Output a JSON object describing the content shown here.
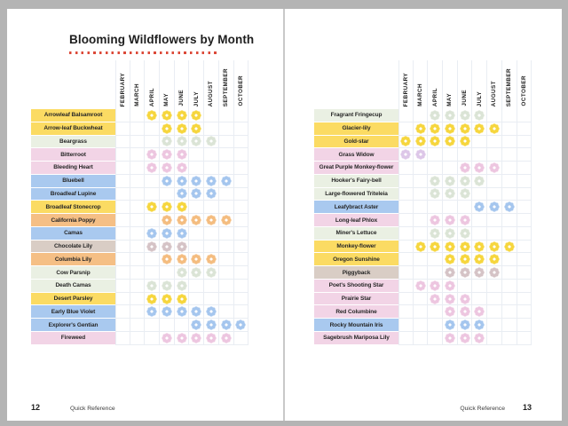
{
  "title": "Blooming Wildflowers by Month",
  "footer": {
    "section_label": "Quick Reference",
    "left_page_number": "12",
    "right_page_number": "13"
  },
  "colors": {
    "surround_background": "#b4b4b4",
    "page_background": "#ffffff",
    "accent_rule": "#dc4a39",
    "grid_line": "#e9edf3",
    "palette": {
      "yellow": {
        "label": "#fbdb63",
        "flower": "#f6d63e"
      },
      "green": {
        "label": "#eaf0e3",
        "flower": "#dbe4d6"
      },
      "pink": {
        "label": "#f2d4e6",
        "flower": "#edc6e0"
      },
      "blue": {
        "label": "#a9c9ef",
        "flower": "#a5c6ee"
      },
      "orange": {
        "label": "#f5bf85",
        "flower": "#f4bd80"
      },
      "tan": {
        "label": "#d9cdc5",
        "flower": "#d5c3c6"
      },
      "purple": {
        "label": "#f2d4e6",
        "flower": "#ddc7e8"
      }
    }
  },
  "chart_data": {
    "type": "heatmap",
    "title": "Blooming Wildflowers by Month",
    "x_categories": [
      "FEBRUARY",
      "MARCH",
      "APRIL",
      "MAY",
      "JUNE",
      "JULY",
      "AUGUST",
      "SEPTEMBER",
      "OCTOBER"
    ],
    "legend_position": "none",
    "grid": true,
    "pages": [
      {
        "page_number": "12",
        "rows": [
          {
            "name": "Arrowleaf Balsamroot",
            "palette": "yellow",
            "blooms": [
              "APRIL",
              "MAY",
              "JUNE",
              "JULY"
            ]
          },
          {
            "name": "Arrow-leaf Buckwheat",
            "palette": "yellow",
            "blooms": [
              "MAY",
              "JUNE",
              "JULY"
            ]
          },
          {
            "name": "Beargrass",
            "palette": "green",
            "blooms": [
              "MAY",
              "JUNE",
              "JULY",
              "AUGUST"
            ]
          },
          {
            "name": "Bitterroot",
            "palette": "pink",
            "blooms": [
              "APRIL",
              "MAY",
              "JUNE"
            ]
          },
          {
            "name": "Bleeding Heart",
            "palette": "pink",
            "blooms": [
              "APRIL",
              "MAY",
              "JUNE"
            ]
          },
          {
            "name": "Bluebell",
            "palette": "blue",
            "blooms": [
              "MAY",
              "JUNE",
              "JULY",
              "AUGUST",
              "SEPTEMBER"
            ]
          },
          {
            "name": "Broadleaf Lupine",
            "palette": "blue",
            "blooms": [
              "JUNE",
              "JULY",
              "AUGUST"
            ]
          },
          {
            "name": "Broadleaf Stonecrop",
            "palette": "yellow",
            "blooms": [
              "APRIL",
              "MAY",
              "JUNE"
            ]
          },
          {
            "name": "California Poppy",
            "palette": "orange",
            "blooms": [
              "MAY",
              "JUNE",
              "JULY",
              "AUGUST",
              "SEPTEMBER"
            ]
          },
          {
            "name": "Camas",
            "palette": "blue",
            "blooms": [
              "APRIL",
              "MAY",
              "JUNE"
            ]
          },
          {
            "name": "Chocolate Lily",
            "palette": "tan",
            "blooms": [
              "APRIL",
              "MAY",
              "JUNE"
            ]
          },
          {
            "name": "Columbia Lily",
            "palette": "orange",
            "blooms": [
              "MAY",
              "JUNE",
              "JULY",
              "AUGUST"
            ]
          },
          {
            "name": "Cow Parsnip",
            "palette": "green",
            "blooms": [
              "JUNE",
              "JULY",
              "AUGUST"
            ]
          },
          {
            "name": "Death Camas",
            "palette": "green",
            "blooms": [
              "APRIL",
              "MAY",
              "JUNE"
            ]
          },
          {
            "name": "Desert Parsley",
            "palette": "yellow",
            "blooms": [
              "APRIL",
              "MAY",
              "JUNE"
            ]
          },
          {
            "name": "Early Blue Violet",
            "palette": "blue",
            "blooms": [
              "APRIL",
              "MAY",
              "JUNE",
              "JULY",
              "AUGUST"
            ]
          },
          {
            "name": "Explorer's Gentian",
            "palette": "blue",
            "blooms": [
              "JULY",
              "AUGUST",
              "SEPTEMBER",
              "OCTOBER"
            ]
          },
          {
            "name": "Fireweed",
            "palette": "pink",
            "blooms": [
              "MAY",
              "JUNE",
              "JULY",
              "AUGUST",
              "SEPTEMBER"
            ]
          }
        ]
      },
      {
        "page_number": "13",
        "rows": [
          {
            "name": "Fragrant Fringecup",
            "palette": "green",
            "blooms": [
              "APRIL",
              "MAY",
              "JUNE",
              "JULY"
            ]
          },
          {
            "name": "Glacier-lily",
            "palette": "yellow",
            "blooms": [
              "MARCH",
              "APRIL",
              "MAY",
              "JUNE",
              "JULY",
              "AUGUST"
            ]
          },
          {
            "name": "Gold-star",
            "palette": "yellow",
            "blooms": [
              "FEBRUARY",
              "MARCH",
              "APRIL",
              "MAY",
              "JUNE"
            ]
          },
          {
            "name": "Grass Widow",
            "palette": "purple",
            "blooms": [
              "FEBRUARY",
              "MARCH"
            ]
          },
          {
            "name": "Great Purple Monkey-flower",
            "palette": "pink",
            "blooms": [
              "JUNE",
              "JULY",
              "AUGUST"
            ]
          },
          {
            "name": "Hooker's Fairy-bell",
            "palette": "green",
            "blooms": [
              "APRIL",
              "MAY",
              "JUNE",
              "JULY"
            ]
          },
          {
            "name": "Large-flowered Triteleia",
            "palette": "green",
            "blooms": [
              "APRIL",
              "MAY",
              "JUNE"
            ]
          },
          {
            "name": "Leafybract Aster",
            "palette": "blue",
            "blooms": [
              "JULY",
              "AUGUST",
              "SEPTEMBER"
            ]
          },
          {
            "name": "Long-leaf Phlox",
            "palette": "pink",
            "blooms": [
              "APRIL",
              "MAY",
              "JUNE"
            ]
          },
          {
            "name": "Miner's Lettuce",
            "palette": "green",
            "blooms": [
              "APRIL",
              "MAY",
              "JUNE"
            ]
          },
          {
            "name": "Monkey-flower",
            "palette": "yellow",
            "blooms": [
              "MARCH",
              "APRIL",
              "MAY",
              "JUNE",
              "JULY",
              "AUGUST",
              "SEPTEMBER"
            ]
          },
          {
            "name": "Oregon Sunshine",
            "palette": "yellow",
            "blooms": [
              "MAY",
              "JUNE",
              "JULY",
              "AUGUST"
            ]
          },
          {
            "name": "Piggyback",
            "palette": "tan",
            "blooms": [
              "MAY",
              "JUNE",
              "JULY",
              "AUGUST"
            ]
          },
          {
            "name": "Poet's Shooting Star",
            "palette": "pink",
            "blooms": [
              "MARCH",
              "APRIL",
              "MAY"
            ]
          },
          {
            "name": "Prairie Star",
            "palette": "pink",
            "blooms": [
              "APRIL",
              "MAY",
              "JUNE"
            ]
          },
          {
            "name": "Red Columbine",
            "palette": "pink",
            "blooms": [
              "MAY",
              "JUNE",
              "JULY"
            ]
          },
          {
            "name": "Rocky Mountain Iris",
            "palette": "blue",
            "blooms": [
              "MAY",
              "JUNE",
              "JULY"
            ]
          },
          {
            "name": "Sagebrush Mariposa Lily",
            "palette": "pink",
            "blooms": [
              "MAY",
              "JUNE",
              "JULY"
            ]
          }
        ]
      }
    ]
  }
}
